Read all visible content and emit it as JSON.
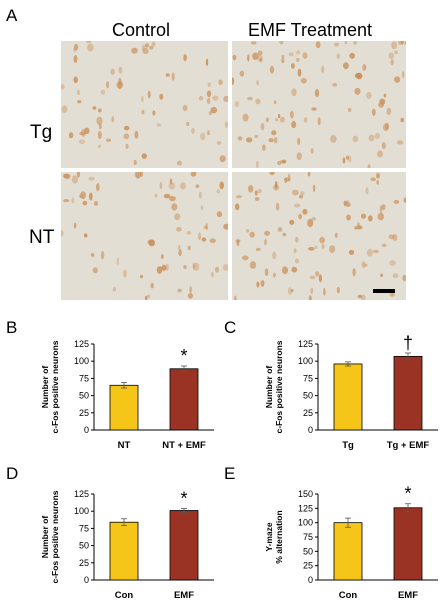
{
  "figure": {
    "panel_a": {
      "letter": "A",
      "columns": [
        "Control",
        "EMF Treatment"
      ],
      "rows": [
        "Tg",
        "NT"
      ]
    }
  },
  "colors": {
    "control_bar": "#f5c518",
    "emf_bar": "#9b3324",
    "micro_bg": "#e3ded3",
    "micro_cell": "#c98e55"
  },
  "chart_data": [
    {
      "panel": "B",
      "type": "bar",
      "categories": [
        "NT",
        "NT + EMF"
      ],
      "values": [
        65,
        89
      ],
      "errors": [
        4,
        4
      ],
      "ylabel": [
        "Number of",
        "c-Fos positive neurons"
      ],
      "ylim": [
        0,
        125
      ],
      "yticks": [
        0,
        25,
        50,
        75,
        100,
        125
      ],
      "annotation": {
        "category": "NT + EMF",
        "text": "*"
      },
      "grid": false
    },
    {
      "panel": "C",
      "type": "bar",
      "categories": [
        "Tg",
        "Tg + EMF"
      ],
      "values": [
        96,
        107
      ],
      "errors": [
        3,
        5
      ],
      "ylabel": [
        "Number of",
        "c-Fos positive neurons"
      ],
      "ylim": [
        0,
        125
      ],
      "yticks": [
        0,
        25,
        50,
        75,
        100,
        125
      ],
      "annotation": {
        "category": "Tg + EMF",
        "text": "†"
      },
      "grid": false
    },
    {
      "panel": "D",
      "type": "bar",
      "categories": [
        "Con",
        "EMF"
      ],
      "values": [
        84,
        101
      ],
      "errors": [
        5,
        3
      ],
      "ylabel": [
        "Number of",
        "c-Fos positive neurons"
      ],
      "ylim": [
        0,
        125
      ],
      "yticks": [
        0,
        25,
        50,
        75,
        100,
        125
      ],
      "annotation": {
        "category": "EMF",
        "text": "*"
      },
      "grid": false
    },
    {
      "panel": "E",
      "type": "bar",
      "categories": [
        "Con",
        "EMF"
      ],
      "values": [
        100,
        126
      ],
      "errors": [
        8,
        7
      ],
      "ylabel": [
        "Y-maze",
        "% alternation"
      ],
      "ylim": [
        0,
        150
      ],
      "yticks": [
        0,
        25,
        50,
        75,
        100,
        125,
        150
      ],
      "annotation": {
        "category": "EMF",
        "text": "*"
      },
      "grid": false
    }
  ]
}
